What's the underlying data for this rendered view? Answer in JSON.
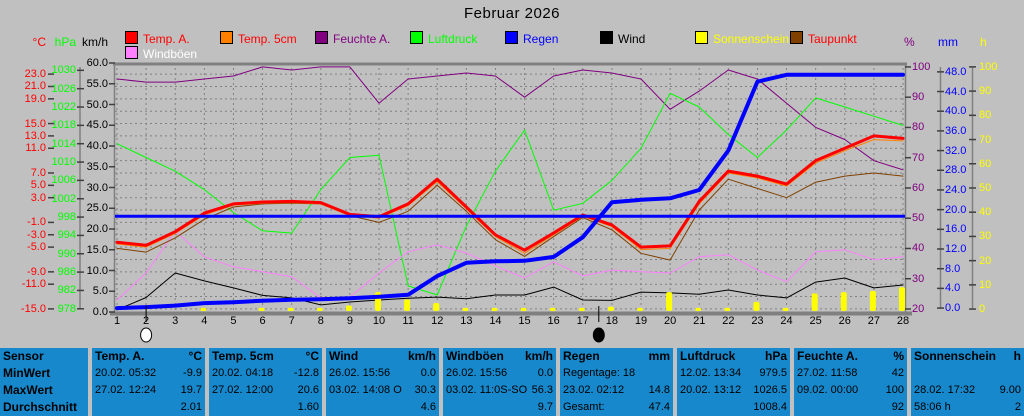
{
  "title": "Februar 2026",
  "colors": {
    "background": "#c0c0c0",
    "grid": "#808080",
    "axis_tick": "#404040",
    "table_background": "#1788cc",
    "table_text": "#000000",
    "zero_line": "#0000ff"
  },
  "legend": {
    "items": [
      {
        "id": "temp-a",
        "label": "Temp. A.",
        "box_color": "#ff0000",
        "text_color": "#ff0000"
      },
      {
        "id": "temp-5cm",
        "label": "Temp. 5cm",
        "box_color": "#ff8000",
        "text_color": "#ff0000"
      },
      {
        "id": "feuchte-a",
        "label": "Feuchte A.",
        "box_color": "#800080",
        "text_color": "#800080"
      },
      {
        "id": "luftdruck",
        "label": "Luftdruck",
        "box_color": "#00ff00",
        "text_color": "#00ff00"
      },
      {
        "id": "regen",
        "label": "Regen",
        "box_color": "#0000ff",
        "text_color": "#0000ff"
      },
      {
        "id": "wind",
        "label": "Wind",
        "box_color": "#000000",
        "text_color": "#000000"
      },
      {
        "id": "sonnenschein",
        "label": "Sonnenschein",
        "box_color": "#ffff00",
        "text_color": "#ffff00"
      },
      {
        "id": "taupunkt",
        "label": "Taupunkt",
        "box_color": "#804000",
        "text_color": "#ff0000"
      },
      {
        "id": "windboeen",
        "label": "Windböen",
        "box_color": "#ff80ff",
        "text_color": "#ffffff"
      }
    ]
  },
  "chart_data": {
    "type": "line",
    "x_label": "day of month",
    "x_categories": [
      "1",
      "2",
      "3",
      "4",
      "5",
      "6",
      "7",
      "8",
      "9",
      "10",
      "11",
      "12",
      "13",
      "14",
      "15",
      "16",
      "17",
      "18",
      "19",
      "20",
      "21",
      "22",
      "23",
      "24",
      "25",
      "26",
      "27",
      "28"
    ],
    "axes": {
      "celsius": {
        "unit": "°C",
        "color": "#ff0000",
        "min": -15.5,
        "max": 24.8,
        "decimals": 1,
        "ticks": [
          23,
          21,
          19,
          15,
          13,
          11,
          7,
          5,
          3,
          -1,
          -3,
          -5,
          -9,
          -11,
          -15
        ]
      },
      "hpa": {
        "unit": "hPa",
        "color": "#00ff00",
        "min": 977.3,
        "max": 1031.6,
        "decimals": 0,
        "ticks": [
          1030,
          1026,
          1022,
          1018,
          1014,
          1010,
          1006,
          1002,
          998,
          994,
          990,
          986,
          982,
          978
        ]
      },
      "kmh": {
        "unit": "km/h",
        "color": "#000000",
        "min": 0,
        "max": 60,
        "decimals": 1,
        "ticks": [
          60,
          55,
          50,
          45,
          40,
          35,
          30,
          25,
          20,
          15,
          10,
          5,
          0
        ]
      },
      "pct": {
        "unit": "%",
        "color": "#800080",
        "min": 19,
        "max": 101.3,
        "decimals": 0,
        "ticks": [
          100,
          90,
          80,
          70,
          60,
          50,
          40,
          30,
          20
        ]
      },
      "mm": {
        "unit": "mm",
        "color": "#0000ff",
        "min": -0.8,
        "max": 49.8,
        "decimals": 1,
        "ticks": [
          48,
          44,
          40,
          36,
          32,
          28,
          24,
          20,
          16,
          12,
          8,
          4,
          0
        ]
      },
      "h": {
        "unit": "h",
        "color": "#ffff00",
        "min": -1.2,
        "max": 101.6,
        "decimals": 0,
        "ticks": [
          100,
          90,
          80,
          70,
          60,
          50,
          40,
          30,
          20,
          10,
          0
        ]
      }
    },
    "series": [
      {
        "id": "feuchte-a",
        "name": "Feuchte A.",
        "type": "line",
        "axis": "pct",
        "color": "#800080",
        "width": 1,
        "values": [
          96,
          95,
          95,
          96,
          97,
          100,
          99,
          100,
          100,
          88,
          96,
          97,
          98,
          97,
          90,
          97,
          99,
          98,
          96,
          86,
          92,
          99,
          96,
          88,
          80,
          76,
          69,
          66
        ]
      },
      {
        "id": "luftdruck",
        "name": "Luftdruck",
        "type": "line",
        "axis": "hpa",
        "color": "#00ff00",
        "width": 1,
        "values": [
          1014,
          1011,
          1008,
          1004,
          999,
          995,
          994.5,
          1004,
          1011,
          1011.5,
          983,
          981,
          996,
          1008,
          1017,
          999.5,
          1001,
          1006,
          1013,
          1025,
          1022,
          1016,
          1011,
          1017,
          1024,
          1022,
          1020,
          1018
        ]
      },
      {
        "id": "windboeen",
        "name": "Windböen",
        "type": "line",
        "axis": "kmh",
        "color": "#ff80ff",
        "width": 1,
        "values": [
          2.9,
          9.4,
          19.5,
          13.3,
          10.9,
          9.7,
          8.5,
          3.4,
          3.6,
          9.4,
          14.5,
          16.2,
          14.2,
          11.1,
          8.2,
          12.1,
          8.7,
          10.1,
          9.7,
          9.4,
          13.3,
          13.8,
          10.1,
          7.3,
          14.5,
          15,
          12.6,
          13.3
        ]
      },
      {
        "id": "wind",
        "name": "Wind",
        "type": "line",
        "axis": "kmh",
        "color": "#000000",
        "width": 1,
        "values": [
          0.5,
          3.5,
          9.4,
          7.5,
          5.8,
          4,
          3.4,
          1.7,
          2.4,
          2.9,
          3.3,
          3.6,
          3.2,
          4.1,
          4.1,
          6,
          2.9,
          2.8,
          4.8,
          4.6,
          4.3,
          5.3,
          4.1,
          3.4,
          7.2,
          8.2,
          5.8,
          6.5
        ]
      },
      {
        "id": "taupunkt",
        "name": "Taupunkt",
        "type": "line",
        "axis": "celsius",
        "color": "#804000",
        "width": 1,
        "values": [
          -5.2,
          -5.8,
          -3.5,
          -0.5,
          1.5,
          2,
          2.1,
          2,
          0.1,
          -1,
          0.8,
          5,
          0.8,
          -3.8,
          -6.5,
          -3.3,
          -0.2,
          -2.2,
          -6,
          -7.1,
          1,
          6,
          4.5,
          3,
          5.5,
          6.5,
          7,
          6.5
        ]
      },
      {
        "id": "temp-5cm",
        "name": "Temp. 5cm",
        "type": "line",
        "axis": "celsius",
        "color": "#ff8000",
        "width": 1,
        "values": [
          -4.5,
          -5,
          -2.8,
          0.2,
          1.8,
          2.1,
          2.2,
          2,
          0.1,
          -0.3,
          1.7,
          5.6,
          1.2,
          -3.3,
          -6,
          -3,
          0,
          -1.7,
          -5.4,
          -5.2,
          2,
          7,
          6.2,
          4.9,
          8.6,
          10.6,
          12.4,
          12.2
        ]
      },
      {
        "id": "temp-a",
        "name": "Temp. A.",
        "type": "line",
        "axis": "celsius",
        "color": "#ff0000",
        "width": 3,
        "values": [
          -4.2,
          -4.7,
          -2.5,
          0.5,
          2,
          2.3,
          2.4,
          2.2,
          0.3,
          -0.1,
          2,
          6,
          1.5,
          -3,
          -5.5,
          -2.7,
          0.2,
          -1.4,
          -5,
          -4.8,
          2.4,
          7.3,
          6.5,
          5.2,
          9,
          11,
          13,
          12.6
        ]
      },
      {
        "id": "zero-line",
        "name": "0 °C reference",
        "type": "refline",
        "axis": "celsius",
        "color": "#0000ff",
        "width": 3,
        "value": 0
      },
      {
        "id": "sonnenschein",
        "name": "Sonnenschein",
        "type": "bar",
        "axis": "h",
        "color": "#ffff00",
        "width": 6,
        "values": [
          0,
          0,
          0,
          0.5,
          0,
          0.5,
          0.5,
          0.5,
          1.5,
          7,
          4,
          2.5,
          0.5,
          0.5,
          0.5,
          0.5,
          0.5,
          1,
          0.5,
          7,
          0.5,
          0.5,
          3,
          0.5,
          6.5,
          7,
          7.5,
          9
        ]
      },
      {
        "id": "regen",
        "name": "Regen (kumuliert)",
        "type": "line",
        "axis": "mm",
        "color": "#0000ff",
        "width": 4,
        "values": [
          0,
          0.2,
          0.5,
          1,
          1.2,
          1.5,
          1.7,
          1.8,
          2,
          2.3,
          2.7,
          6.5,
          9.2,
          9.5,
          9.6,
          10.4,
          14.4,
          21.5,
          22,
          22.3,
          24,
          32,
          46,
          47.4,
          47.4,
          47.4,
          47.4,
          47.4
        ]
      }
    ],
    "moon_phases": [
      {
        "day": 2,
        "phase": "full"
      },
      {
        "day": 17.55,
        "phase": "new"
      }
    ]
  },
  "table": {
    "row_labels": [
      "Sensor",
      "MinWert",
      "MaxWert",
      "Durchschnitt"
    ],
    "columns": [
      {
        "title": "Temp. A.",
        "unit": "°C",
        "rows": [
          [
            "20.02.  05:32",
            "-9.9"
          ],
          [
            "27.02.  12:24",
            "19.7"
          ],
          [
            "",
            "2.01"
          ]
        ]
      },
      {
        "title": "Temp. 5cm",
        "unit": "°C",
        "rows": [
          [
            "20.02.  04:18",
            "-12.8"
          ],
          [
            "27.02.  12:00",
            "20.6"
          ],
          [
            "",
            "1.60"
          ]
        ]
      },
      {
        "title": "Wind",
        "unit": "km/h",
        "rows": [
          [
            "26.02.  15:56",
            "0.0"
          ],
          [
            "03.02.  14:08  O",
            "30.3"
          ],
          [
            "",
            "4.6"
          ]
        ]
      },
      {
        "title": "Windböen",
        "unit": "km/h",
        "rows": [
          [
            "26.02.  15:56",
            "0.0"
          ],
          [
            "03.02.  11:0S-SO",
            "56.3"
          ],
          [
            "",
            "9.7"
          ]
        ]
      },
      {
        "title": "Regen",
        "unit": "mm",
        "rows": [
          [
            "Regentage: 18",
            ""
          ],
          [
            "23.02.  02:12",
            "14.8"
          ],
          [
            "Gesamt:",
            "47.4"
          ]
        ]
      },
      {
        "title": "Luftdruck",
        "unit": "hPa",
        "rows": [
          [
            "12.02.  13:34",
            "979.5"
          ],
          [
            "20.02.  13:12",
            "1026.5"
          ],
          [
            "",
            "1008.4"
          ]
        ]
      },
      {
        "title": "Feuchte A.",
        "unit": "%",
        "rows": [
          [
            "27.02.  11:58",
            "42"
          ],
          [
            "09.02.  00:00",
            "100"
          ],
          [
            "",
            "92"
          ]
        ]
      },
      {
        "title": "Sonnenschein",
        "unit": "h",
        "rows": [
          [
            "",
            ""
          ],
          [
            "28.02.  17:32",
            "9.00"
          ],
          [
            "58:06 h",
            "2"
          ]
        ]
      }
    ]
  }
}
